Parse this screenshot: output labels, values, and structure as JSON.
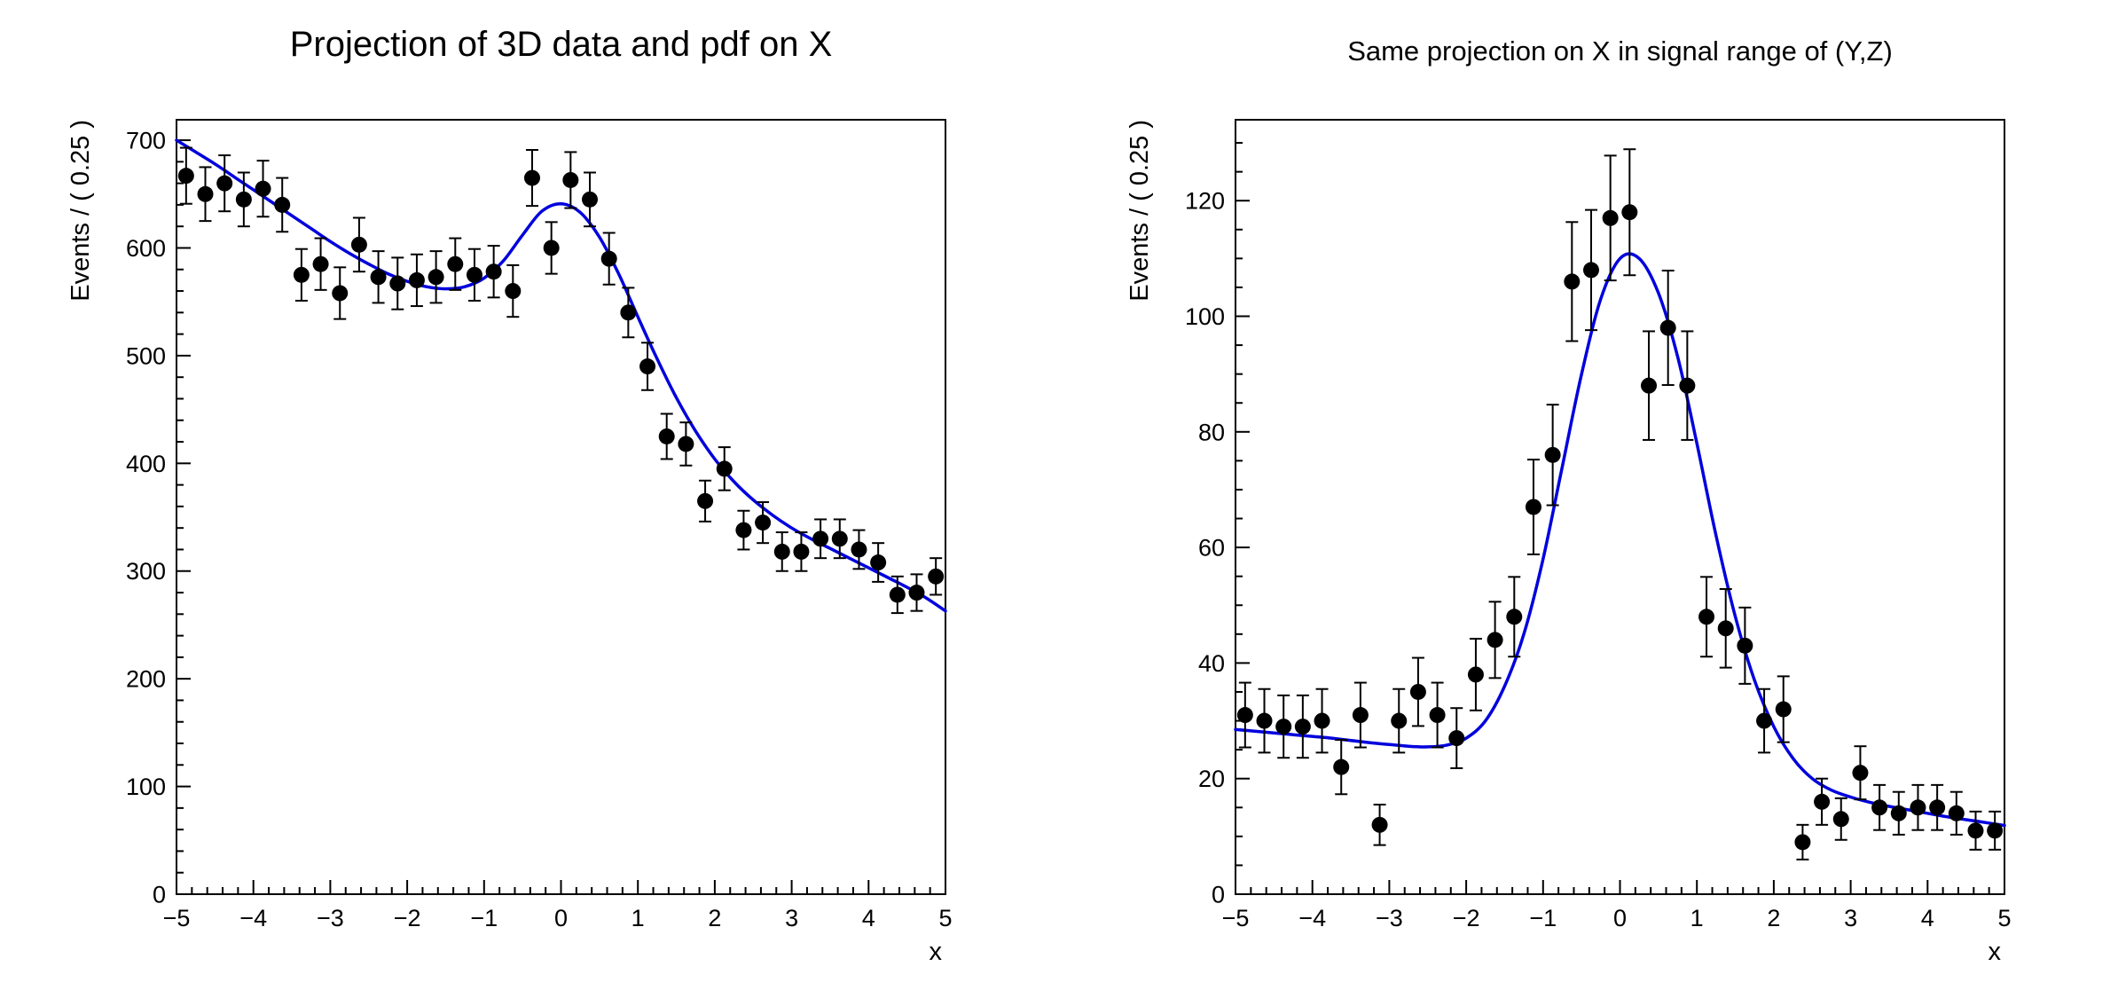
{
  "page": {
    "background": "#ffffff"
  },
  "chart_data": [
    {
      "type": "scatter",
      "title": "Projection of 3D data and pdf on X",
      "xlabel": "x",
      "ylabel": "Events / ( 0.25 )",
      "xlim": [
        -5,
        5
      ],
      "ylim": [
        0,
        719
      ],
      "xticks": [
        -5,
        -4,
        -3,
        -2,
        -1,
        0,
        1,
        2,
        3,
        4,
        5
      ],
      "yticks": [
        0,
        100,
        200,
        300,
        400,
        500,
        600,
        700
      ],
      "x_minor_step": 0.2,
      "y_minor_step": 20,
      "grid": false,
      "legend": null,
      "marker_color": "#000000",
      "curve_color": "#0000dd",
      "points": {
        "x": [
          -4.875,
          -4.625,
          -4.375,
          -4.125,
          -3.875,
          -3.625,
          -3.375,
          -3.125,
          -2.875,
          -2.625,
          -2.375,
          -2.125,
          -1.875,
          -1.625,
          -1.375,
          -1.125,
          -0.875,
          -0.625,
          -0.375,
          -0.125,
          0.125,
          0.375,
          0.625,
          0.875,
          1.125,
          1.375,
          1.625,
          1.875,
          2.125,
          2.375,
          2.625,
          2.875,
          3.125,
          3.375,
          3.625,
          3.875,
          4.125,
          4.375,
          4.625,
          4.875
        ],
        "y": [
          667,
          650,
          660,
          645,
          655,
          640,
          575,
          585,
          558,
          603,
          573,
          567,
          570,
          573,
          585,
          575,
          578,
          560,
          665,
          600,
          663,
          645,
          590,
          540,
          490,
          425,
          418,
          365,
          395,
          338,
          345,
          318,
          318,
          330,
          330,
          320,
          308,
          278,
          280,
          295
        ],
        "yerr": [
          26,
          25,
          26,
          25,
          26,
          25,
          24,
          24,
          24,
          25,
          24,
          24,
          24,
          24,
          24,
          24,
          24,
          24,
          26,
          24,
          26,
          25,
          24,
          23,
          22,
          21,
          20,
          19,
          20,
          18,
          19,
          18,
          18,
          18,
          18,
          18,
          18,
          17,
          17,
          17
        ]
      },
      "curve": {
        "x": [
          -5,
          -4.75,
          -4.5,
          -4.25,
          -4,
          -3.75,
          -3.5,
          -3.25,
          -3,
          -2.75,
          -2.5,
          -2.25,
          -2,
          -1.75,
          -1.5,
          -1.25,
          -1,
          -0.75,
          -0.5,
          -0.25,
          0,
          0.25,
          0.5,
          0.75,
          1,
          1.25,
          1.5,
          1.75,
          2,
          2.25,
          2.5,
          2.75,
          3,
          3.25,
          3.5,
          3.75,
          4,
          4.25,
          4.5,
          4.75,
          5
        ],
        "y": [
          700,
          689,
          678,
          666,
          654,
          642,
          630,
          618,
          606,
          595,
          585,
          576,
          569,
          564,
          562,
          564,
          572,
          588,
          612,
          634,
          641,
          633,
          610,
          576,
          536,
          497,
          461,
          430,
          404,
          383,
          366,
          352,
          340,
          330,
          321,
          312,
          303,
          294,
          285,
          275,
          263
        ]
      }
    },
    {
      "type": "scatter",
      "title": "Same projection on X in signal range of (Y,Z)",
      "xlabel": "x",
      "ylabel": "Events / ( 0.25 )",
      "xlim": [
        -5,
        5
      ],
      "ylim": [
        0,
        134
      ],
      "xticks": [
        -5,
        -4,
        -3,
        -2,
        -1,
        0,
        1,
        2,
        3,
        4,
        5
      ],
      "yticks": [
        0,
        20,
        40,
        60,
        80,
        100,
        120
      ],
      "x_minor_step": 0.2,
      "y_minor_step": 5,
      "grid": false,
      "legend": null,
      "marker_color": "#000000",
      "curve_color": "#0000dd",
      "points": {
        "x": [
          -4.875,
          -4.625,
          -4.375,
          -4.125,
          -3.875,
          -3.625,
          -3.375,
          -3.125,
          -2.875,
          -2.625,
          -2.375,
          -2.125,
          -1.875,
          -1.625,
          -1.375,
          -1.125,
          -0.875,
          -0.625,
          -0.375,
          -0.125,
          0.125,
          0.375,
          0.625,
          0.875,
          1.125,
          1.375,
          1.625,
          1.875,
          2.125,
          2.375,
          2.625,
          2.875,
          3.125,
          3.375,
          3.625,
          3.875,
          4.125,
          4.375,
          4.625,
          4.875
        ],
        "y": [
          31,
          30,
          29,
          29,
          30,
          22,
          31,
          12,
          30,
          35,
          31,
          27,
          38,
          44,
          48,
          67,
          76,
          106,
          108,
          117,
          118,
          88,
          98,
          88,
          48,
          46,
          43,
          30,
          32,
          9,
          16,
          13,
          21,
          15,
          14,
          15,
          15,
          14,
          11,
          11
        ],
        "yerr": [
          5.6,
          5.5,
          5.4,
          5.4,
          5.5,
          4.7,
          5.6,
          3.5,
          5.5,
          5.9,
          5.6,
          5.2,
          6.2,
          6.6,
          6.9,
          8.2,
          8.7,
          10.3,
          10.4,
          10.8,
          10.9,
          9.4,
          9.9,
          9.4,
          6.9,
          6.8,
          6.6,
          5.5,
          5.7,
          3.0,
          4.0,
          3.6,
          4.6,
          3.9,
          3.7,
          3.9,
          3.9,
          3.7,
          3.3,
          3.3
        ]
      },
      "curve": {
        "x": [
          -5,
          -4.75,
          -4.5,
          -4.25,
          -4,
          -3.75,
          -3.5,
          -3.25,
          -3,
          -2.75,
          -2.5,
          -2.25,
          -2,
          -1.75,
          -1.5,
          -1.25,
          -1,
          -0.75,
          -0.5,
          -0.25,
          0,
          0.25,
          0.5,
          0.75,
          1,
          1.25,
          1.5,
          1.75,
          2,
          2.25,
          2.5,
          2.75,
          3,
          3.25,
          3.5,
          3.75,
          4,
          4.25,
          4.5,
          4.75,
          5
        ],
        "y": [
          28.5,
          28.2,
          27.9,
          27.6,
          27.3,
          27.0,
          26.6,
          26.2,
          25.9,
          25.6,
          25.5,
          25.8,
          27.0,
          30.0,
          36,
          45,
          58,
          74,
          90,
          103,
          110,
          110,
          104,
          93,
          78,
          62,
          48,
          37,
          29,
          23.5,
          20,
          18,
          16.8,
          15.9,
          15.2,
          14.6,
          14.0,
          13.4,
          12.9,
          12.4,
          11.9
        ]
      }
    }
  ]
}
